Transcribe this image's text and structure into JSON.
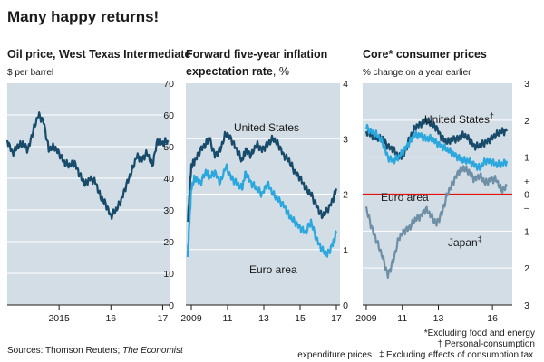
{
  "title": "Many happy returns!",
  "sources_label": "Sources: Thomson Reuters; ",
  "sources_italic": "The Economist",
  "footnotes": {
    "line1": "*Excluding food and energy",
    "dagger_part1": "Personal-consumption",
    "dagger_part2": "expenditure prices",
    "line3": "Excluding effects of consumption tax",
    "dagger_mark": "†",
    "ddagger_mark": "‡"
  },
  "colors": {
    "background": "#ffffff",
    "panel": "#d2dde6",
    "gridline": "#ffffff",
    "dark_series": "#174b69",
    "light_series": "#2aa7dc",
    "japan_series": "#6e8fa5",
    "zero_line": "#e3120b",
    "text": "#1a1a1a"
  },
  "chart_data": [
    {
      "type": "line",
      "title": "Oil price, West Texas Intermediate",
      "ylabel": "$ per barrel",
      "ylim": [
        0,
        70
      ],
      "yticks": [
        "0",
        "10",
        "20",
        "30",
        "40",
        "50",
        "60",
        "70"
      ],
      "xticks": [
        "2015",
        "16",
        "17"
      ],
      "xtick_values": [
        2015.0,
        2016.0,
        2017.0
      ],
      "xlim": [
        2014.0,
        2017.15
      ],
      "axis_side": "right",
      "series": [
        {
          "color_key": "dark_series",
          "x": [
            2014.0,
            2014.1,
            2014.2,
            2014.3,
            2014.4,
            2014.5,
            2014.6,
            2014.7,
            2014.8,
            2014.9,
            2015.0,
            2015.1,
            2015.2,
            2015.3,
            2015.4,
            2015.5,
            2015.6,
            2015.7,
            2015.8,
            2015.9,
            2016.0,
            2016.1,
            2016.2,
            2016.3,
            2016.4,
            2016.5,
            2016.6,
            2016.7,
            2016.8,
            2016.9,
            2017.0,
            2017.1
          ],
          "values": [
            52,
            48,
            50,
            51,
            49,
            55,
            60,
            58,
            49,
            50,
            48,
            45,
            44,
            45,
            41,
            38,
            40,
            39,
            34,
            32,
            28,
            30,
            33,
            38,
            42,
            47,
            46,
            48,
            44,
            52,
            51,
            52
          ]
        }
      ]
    },
    {
      "type": "line",
      "title": "Forward five-year inflation expectation rate, %",
      "ylim": [
        0,
        4
      ],
      "yticks": [
        "0",
        "1",
        "2",
        "3",
        "4"
      ],
      "xticks": [
        "2009",
        "11",
        "13",
        "15",
        "17"
      ],
      "xtick_values": [
        2009.0,
        2011.0,
        2013.0,
        2015.0,
        2017.0
      ],
      "xlim": [
        2008.7,
        2017.2
      ],
      "axis_side": "right",
      "series": [
        {
          "name": "United States",
          "color_key": "dark_series",
          "x": [
            2008.8,
            2008.9,
            2009.0,
            2009.2,
            2009.5,
            2009.8,
            2010.0,
            2010.3,
            2010.6,
            2010.9,
            2011.2,
            2011.5,
            2011.8,
            2012.0,
            2012.3,
            2012.6,
            2012.9,
            2013.2,
            2013.5,
            2013.8,
            2014.1,
            2014.4,
            2014.7,
            2015.0,
            2015.3,
            2015.6,
            2015.9,
            2016.2,
            2016.5,
            2016.8,
            2017.0
          ],
          "values": [
            1.5,
            2.0,
            2.5,
            2.6,
            2.8,
            2.9,
            3.0,
            2.7,
            2.8,
            3.1,
            3.0,
            2.8,
            2.6,
            2.8,
            2.7,
            2.9,
            2.8,
            2.9,
            3.0,
            2.9,
            2.7,
            2.6,
            2.4,
            2.3,
            2.1,
            2.0,
            1.8,
            1.6,
            1.7,
            1.9,
            2.1
          ]
        },
        {
          "name": "Euro area",
          "color_key": "light_series",
          "x": [
            2008.8,
            2008.9,
            2009.0,
            2009.2,
            2009.5,
            2009.8,
            2010.0,
            2010.3,
            2010.6,
            2010.9,
            2011.2,
            2011.5,
            2011.8,
            2012.0,
            2012.3,
            2012.6,
            2012.9,
            2013.2,
            2013.5,
            2013.8,
            2014.1,
            2014.4,
            2014.7,
            2015.0,
            2015.3,
            2015.6,
            2015.9,
            2016.2,
            2016.5,
            2016.8,
            2017.0
          ],
          "values": [
            0.9,
            1.5,
            2.1,
            2.3,
            2.2,
            2.4,
            2.3,
            2.4,
            2.2,
            2.5,
            2.3,
            2.2,
            2.1,
            2.4,
            2.2,
            2.1,
            2.0,
            2.2,
            2.0,
            1.9,
            1.8,
            1.6,
            1.5,
            1.4,
            1.3,
            1.5,
            1.2,
            1.0,
            0.9,
            1.1,
            1.3
          ]
        }
      ]
    },
    {
      "type": "line",
      "title": "Core* consumer prices",
      "ylabel": "% change on a year earlier",
      "ylim": [
        -3,
        3
      ],
      "yticks": [
        "3",
        "2",
        "1",
        "+",
        "0",
        "–",
        "1",
        "2",
        "3"
      ],
      "ytick_values": [
        3,
        2,
        1,
        0.35,
        0,
        -0.35,
        -1,
        -2,
        -3
      ],
      "xticks": [
        "2009",
        "11",
        "13",
        "16"
      ],
      "xtick_values": [
        2009.0,
        2011.0,
        2013.0,
        2016.0
      ],
      "xlim": [
        2008.8,
        2017.1
      ],
      "axis_side": "right",
      "reference_line": 0,
      "series": [
        {
          "name": "United States",
          "color_key": "dark_series",
          "x": [
            2009.0,
            2009.3,
            2009.6,
            2009.9,
            2010.2,
            2010.5,
            2010.8,
            2011.1,
            2011.4,
            2011.7,
            2012.0,
            2012.3,
            2012.6,
            2012.9,
            2013.2,
            2013.5,
            2013.8,
            2014.1,
            2014.4,
            2014.7,
            2015.0,
            2015.3,
            2015.6,
            2015.9,
            2016.2,
            2016.5,
            2016.8
          ],
          "values": [
            1.7,
            1.6,
            1.5,
            1.5,
            1.3,
            1.2,
            1.0,
            1.1,
            1.5,
            1.8,
            1.9,
            2.0,
            1.9,
            1.8,
            1.5,
            1.4,
            1.5,
            1.5,
            1.6,
            1.5,
            1.3,
            1.3,
            1.4,
            1.5,
            1.6,
            1.7,
            1.7
          ]
        },
        {
          "name": "Euro area",
          "color_key": "light_series",
          "x": [
            2009.0,
            2009.3,
            2009.6,
            2009.9,
            2010.2,
            2010.5,
            2010.8,
            2011.1,
            2011.4,
            2011.7,
            2012.0,
            2012.3,
            2012.6,
            2012.9,
            2013.2,
            2013.5,
            2013.8,
            2014.1,
            2014.4,
            2014.7,
            2015.0,
            2015.3,
            2015.6,
            2015.9,
            2016.2,
            2016.5,
            2016.8
          ],
          "values": [
            1.8,
            1.7,
            1.6,
            1.4,
            1.0,
            0.9,
            1.0,
            1.2,
            1.4,
            1.6,
            1.6,
            1.5,
            1.5,
            1.4,
            1.3,
            1.2,
            1.1,
            1.0,
            0.9,
            0.9,
            0.8,
            0.7,
            0.9,
            0.9,
            0.8,
            0.8,
            0.9
          ]
        },
        {
          "name": "Japan",
          "color_key": "japan_series",
          "x": [
            2009.0,
            2009.3,
            2009.6,
            2009.9,
            2010.2,
            2010.5,
            2010.8,
            2011.1,
            2011.4,
            2011.7,
            2012.0,
            2012.3,
            2012.6,
            2012.9,
            2013.2,
            2013.5,
            2013.8,
            2014.1,
            2014.4,
            2014.7,
            2015.0,
            2015.3,
            2015.6,
            2015.9,
            2016.2,
            2016.5,
            2016.8
          ],
          "values": [
            -0.4,
            -0.9,
            -1.3,
            -1.7,
            -2.2,
            -1.8,
            -1.2,
            -1.0,
            -0.9,
            -0.7,
            -0.6,
            -0.4,
            -0.6,
            -0.8,
            -0.5,
            0.0,
            0.3,
            0.6,
            0.7,
            0.6,
            0.4,
            0.5,
            0.3,
            0.4,
            0.4,
            0.1,
            0.2
          ]
        }
      ]
    }
  ]
}
